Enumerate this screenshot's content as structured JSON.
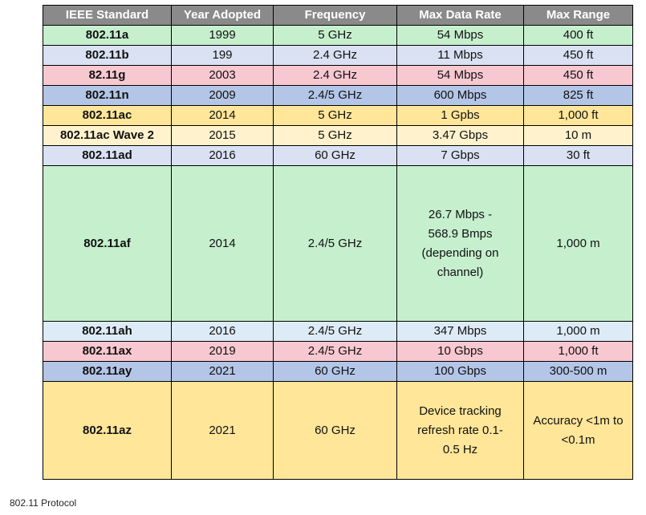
{
  "table": {
    "headers": [
      "IEEE Standard",
      "Year Adopted",
      "Frequency",
      "Max Data Rate",
      "Max Range"
    ],
    "rows": [
      {
        "standard": "802.11a",
        "year": "1999",
        "frequency": "5 GHz",
        "rate": "54 Mbps",
        "range": "400 ft",
        "color": "#c6efce"
      },
      {
        "standard": "802.11b",
        "year": "199",
        "frequency": "2.4 GHz",
        "rate": "11 Mbps",
        "range": "450 ft",
        "color": "#d9e1f2"
      },
      {
        "standard": "82.11g",
        "year": "2003",
        "frequency": "2.4 GHz",
        "rate": "54 Mbps",
        "range": "450 ft",
        "color": "#f8c8d0"
      },
      {
        "standard": "802.11n",
        "year": "2009",
        "frequency": "2.4/5 GHz",
        "rate": "600 Mbps",
        "range": "825 ft",
        "color": "#b4c6e7"
      },
      {
        "standard": "802.11ac",
        "year": "2014",
        "frequency": "5 GHz",
        "rate": "1 Gpbs",
        "range": "1,000 ft",
        "color": "#ffe699"
      },
      {
        "standard": "802.11ac Wave 2",
        "year": "2015",
        "frequency": "5 GHz",
        "rate": "3.47 Gbps",
        "range": "10 m",
        "color": "#fff2cc"
      },
      {
        "standard": "802.11ad",
        "year": "2016",
        "frequency": "60 GHz",
        "rate": "7 Gbps",
        "range": "30 ft",
        "color": "#d9e1f2"
      },
      {
        "standard": "802.11af",
        "year": "2014",
        "frequency": "2.4/5 GHz",
        "rate": "26.7 Mbps -\n568.9 Bmps\n(depending on\nchannel)",
        "range": "1,000 m",
        "color": "#c6efce"
      },
      {
        "standard": "802.11ah",
        "year": "2016",
        "frequency": "2.4/5 GHz",
        "rate": "347 Mbps",
        "range": "1,000 m",
        "color": "#ddebf7"
      },
      {
        "standard": "802.11ax",
        "year": "2019",
        "frequency": "2.4/5 GHz",
        "rate": "10 Gbps",
        "range": "1,000 ft",
        "color": "#f8c8d0"
      },
      {
        "standard": "802.11ay",
        "year": "2021",
        "frequency": "60 GHz",
        "rate": "100 Gbps",
        "range": "300-500 m",
        "color": "#b4c6e7"
      },
      {
        "standard": "802.11az",
        "year": "2021",
        "frequency": "60 GHz",
        "rate": "Device tracking\nrefresh rate 0.1-\n0.5 Hz",
        "range": "Accuracy <1m to\n<0.1m",
        "color": "#ffe699"
      }
    ]
  },
  "caption": "802.11 Protocol"
}
